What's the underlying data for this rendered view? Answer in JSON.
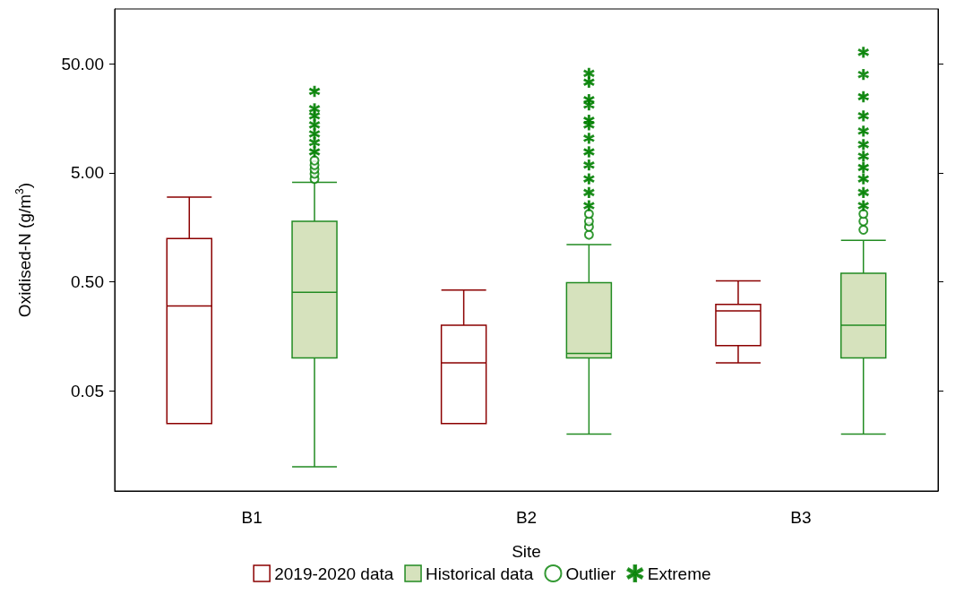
{
  "chart_data": {
    "type": "box",
    "xlabel": "Site",
    "ylabel": "Oxidised-N (g/m$^{3}$)",
    "categories": [
      "B1",
      "B2",
      "B3"
    ],
    "log": true,
    "ylim": [
      0.006,
      160
    ],
    "yticks": [
      {
        "value": 0.05,
        "label": "0.05"
      },
      {
        "value": 0.5,
        "label": "0.50"
      },
      {
        "value": 5,
        "label": "5.00"
      },
      {
        "value": 50,
        "label": "50.00"
      }
    ],
    "grid": false,
    "legend": "bottom",
    "series": [
      {
        "name": "2019-2020 data",
        "color": "#8b0000",
        "boxes": [
          {
            "low": 0.025,
            "q1": 0.025,
            "median": 0.3,
            "q3": 1.25,
            "high": 3.0
          },
          {
            "low": 0.025,
            "q1": 0.025,
            "median": 0.09,
            "q3": 0.2,
            "high": 0.42
          },
          {
            "low": 0.09,
            "q1": 0.13,
            "median": 0.27,
            "q3": 0.31,
            "high": 0.51
          }
        ]
      },
      {
        "name": "Historical data",
        "color": "#228b22",
        "boxes": [
          {
            "low": 0.01,
            "q1": 0.1,
            "median": 0.4,
            "q3": 1.8,
            "high": 4.1
          },
          {
            "low": 0.02,
            "q1": 0.1,
            "median": 0.11,
            "q3": 0.49,
            "high": 1.1
          },
          {
            "low": 0.02,
            "q1": 0.1,
            "median": 0.2,
            "q3": 0.6,
            "high": 1.2
          }
        ]
      },
      {
        "name": "Outlier",
        "type": "scatter",
        "marker": "circle",
        "color": "#008000",
        "x": [
          "B1",
          "B1",
          "B1",
          "B1",
          "B1",
          "B2",
          "B2",
          "B2",
          "B2",
          "B3",
          "B3",
          "B3"
        ],
        "values": [
          4.4,
          4.9,
          5.4,
          5.9,
          6.5,
          1.35,
          1.6,
          1.8,
          2.1,
          1.5,
          1.8,
          2.1
        ]
      },
      {
        "name": "Extreme",
        "type": "scatter",
        "marker": "cross",
        "color": "#008000",
        "x": [
          "B1",
          "B1",
          "B1",
          "B1",
          "B1",
          "B1",
          "B1",
          "B2",
          "B2",
          "B2",
          "B2",
          "B2",
          "B2",
          "B2",
          "B2",
          "B2",
          "B2",
          "B2",
          "B2",
          "B3",
          "B3",
          "B3",
          "B3",
          "B3",
          "B3",
          "B3",
          "B3",
          "B3",
          "B3",
          "B3"
        ],
        "values": [
          7.8,
          9.5,
          11.4,
          13.8,
          16.7,
          19.4,
          28,
          2.5,
          3.3,
          4.4,
          5.9,
          7.8,
          10.4,
          13.8,
          15.2,
          21,
          23.5,
          34,
          41,
          2.5,
          3.3,
          4.4,
          5.6,
          7.1,
          9.1,
          12.1,
          16.7,
          25,
          40,
          64
        ]
      }
    ]
  }
}
